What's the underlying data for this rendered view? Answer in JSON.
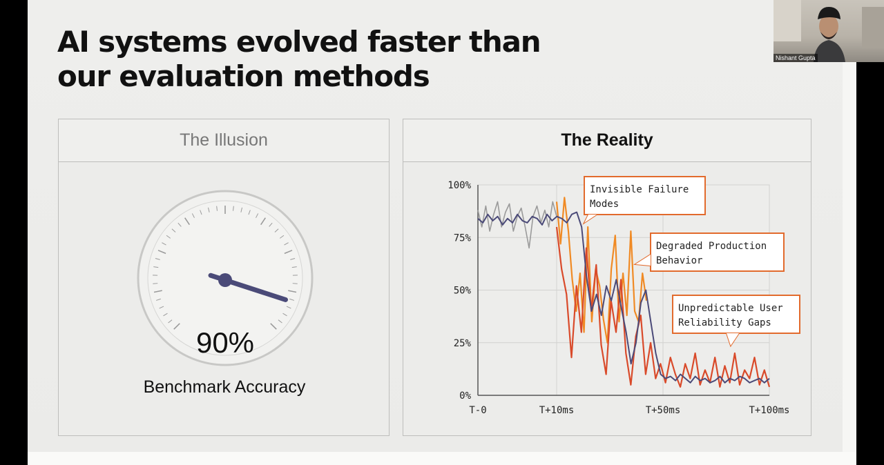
{
  "slide": {
    "title": "AI systems evolved faster than our evaluation methods"
  },
  "illusion_panel": {
    "header": "The Illusion",
    "gauge_value": "90%",
    "gauge_fraction": 0.9,
    "gauge_label": "Benchmark Accuracy"
  },
  "reality_panel": {
    "header": "The Reality"
  },
  "chart_data": {
    "type": "line",
    "title": "",
    "xlabel": "",
    "ylabel": "",
    "x_tick_labels": [
      "T-0",
      "T+10ms",
      "T+50ms",
      "T+100ms"
    ],
    "y_tick_labels": [
      "100%",
      "75%",
      "50%",
      "25%",
      "0%"
    ],
    "ylim": [
      0,
      100
    ],
    "grid": true,
    "annotations": [
      {
        "text_line1": "Invisible Failure",
        "text_line2": "Modes"
      },
      {
        "text_line1": "Degraded Production",
        "text_line2": "Behavior"
      },
      {
        "text_line1": "Unpredictable User",
        "text_line2": "Reliability Gaps"
      }
    ],
    "series": [
      {
        "color": "#9a9a9a",
        "values": [
          88,
          80,
          90,
          78,
          86,
          92,
          80,
          87,
          91,
          78,
          85,
          89,
          80,
          70,
          85,
          90,
          82,
          88,
          80,
          92,
          85
        ]
      },
      {
        "color": "#f08a24",
        "values": [
          92,
          72,
          94,
          78,
          55,
          40,
          58,
          30,
          80,
          35,
          60,
          52,
          36,
          25,
          60,
          76,
          35,
          58,
          38,
          78,
          40,
          35,
          58,
          45
        ]
      },
      {
        "color": "#d94a2a",
        "values": [
          80,
          60,
          48,
          18,
          52,
          30,
          70,
          40,
          62,
          24,
          10,
          45,
          30,
          55,
          20,
          5,
          28,
          38,
          10,
          25,
          8,
          15,
          6,
          18,
          10,
          4,
          15,
          8,
          20,
          5,
          12,
          6,
          18,
          4,
          14,
          6,
          20,
          5,
          12,
          8,
          18,
          5,
          12,
          4
        ]
      },
      {
        "color": "#4b4a78",
        "values": [
          84,
          82,
          86,
          83,
          85,
          81,
          84,
          82,
          86,
          83,
          82,
          85,
          84,
          81,
          86,
          83,
          85,
          84,
          82,
          86,
          87,
          80,
          56,
          40,
          48,
          38,
          52,
          45,
          55,
          42,
          30,
          15,
          25,
          44,
          50,
          35,
          20,
          10,
          8,
          9,
          7,
          10,
          8,
          6,
          9,
          7,
          8,
          6,
          7,
          9,
          6,
          8,
          7,
          9,
          8,
          6,
          7,
          8,
          6,
          8
        ]
      }
    ]
  },
  "webcam": {
    "participant_name": "Nishant Gupta"
  }
}
